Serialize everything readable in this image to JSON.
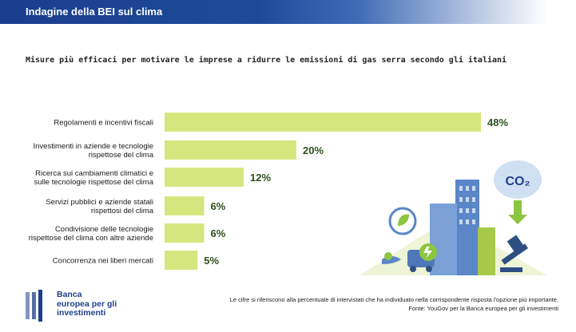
{
  "header": {
    "title": "Indagine della BEI sul clima"
  },
  "chart_data": {
    "type": "bar",
    "orientation": "horizontal",
    "title": "Misure più efficaci per motivare le imprese a ridurre le emissioni di gas serra secondo gli italiani",
    "categories": [
      [
        "Regolamenti e incentivi fiscali"
      ],
      [
        "Investimenti in aziende e tecnologie",
        "rispettose del clima"
      ],
      [
        "Ricerca sui cambiamenti climatici e",
        "sulle tecnologie rispettose del clima"
      ],
      [
        "Servizi pubblici e aziende statali",
        "rispettosi del clima"
      ],
      [
        "Condivisione delle tecnologie",
        "rispettose del clima con altre aziende"
      ],
      [
        "Concorrenza nei liberi mercati"
      ]
    ],
    "values": [
      48,
      20,
      12,
      6,
      6,
      5
    ],
    "value_labels": [
      "48%",
      "20%",
      "12%",
      "6%",
      "6%",
      "5%"
    ],
    "unit": "%",
    "xlim": [
      0,
      48
    ],
    "bar_color": "#d6e67f",
    "label_color": "#2e4f1e",
    "grid": false
  },
  "logo": {
    "line1": "Banca",
    "line2": "europea per gli",
    "line3": "investimenti"
  },
  "footnote": {
    "line1": "Le cifre si riferiscono alla percentuale di intervistati che ha individuato nella corrispondente risposta l'opzione più importante.",
    "line2": "Fonte: YouGov per la Banca europea per gli investimenti"
  },
  "illustration": {
    "co2_label": "CO₂"
  },
  "colors": {
    "header_dark": "#1a3f8c",
    "brand_blue": "#1f3f8a",
    "illustration_blue": "#5b86c7",
    "illustration_green": "#a6c94a"
  }
}
